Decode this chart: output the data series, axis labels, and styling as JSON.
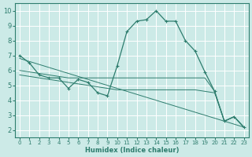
{
  "xlabel": "Humidex (Indice chaleur)",
  "xlim": [
    -0.5,
    23.5
  ],
  "ylim": [
    1.5,
    10.5
  ],
  "xticks": [
    0,
    1,
    2,
    3,
    4,
    5,
    6,
    7,
    8,
    9,
    10,
    11,
    12,
    13,
    14,
    15,
    16,
    17,
    18,
    19,
    20,
    21,
    22,
    23
  ],
  "yticks": [
    2,
    3,
    4,
    5,
    6,
    7,
    8,
    9,
    10
  ],
  "bg_color": "#cceae7",
  "grid_color": "#ffffff",
  "line_color": "#2e7d6e",
  "lines": [
    {
      "x": [
        0,
        1,
        2,
        3,
        4,
        5,
        6,
        7,
        8,
        9,
        10,
        11,
        12,
        13,
        14,
        15,
        16,
        17,
        18,
        19,
        20,
        21,
        22,
        23
      ],
      "y": [
        7.0,
        6.5,
        5.7,
        5.5,
        5.5,
        4.8,
        5.4,
        5.2,
        4.5,
        4.3,
        6.3,
        8.6,
        9.3,
        9.4,
        10.0,
        9.3,
        9.3,
        8.0,
        7.3,
        5.9,
        4.6,
        2.6,
        2.9,
        2.2
      ],
      "marker": true
    },
    {
      "x": [
        0,
        1,
        2,
        3,
        4,
        5,
        6,
        7,
        8,
        9,
        10,
        11,
        12,
        13,
        14,
        15,
        16,
        17,
        18,
        19,
        20,
        21,
        22,
        23
      ],
      "y": [
        6.0,
        5.9,
        5.8,
        5.7,
        5.6,
        5.5,
        5.5,
        5.5,
        5.5,
        5.5,
        5.5,
        5.5,
        5.5,
        5.5,
        5.5,
        5.5,
        5.5,
        5.5,
        5.5,
        5.5,
        4.6,
        2.6,
        2.9,
        2.2
      ],
      "marker": false
    },
    {
      "x": [
        0,
        1,
        2,
        3,
        4,
        5,
        6,
        7,
        8,
        9,
        10,
        11,
        12,
        13,
        14,
        15,
        16,
        17,
        18,
        19,
        20,
        21,
        22,
        23
      ],
      "y": [
        5.7,
        5.6,
        5.5,
        5.4,
        5.3,
        5.2,
        5.1,
        5.0,
        4.9,
        4.8,
        4.7,
        4.7,
        4.7,
        4.7,
        4.7,
        4.7,
        4.7,
        4.7,
        4.7,
        4.6,
        4.5,
        2.6,
        2.9,
        2.2
      ],
      "marker": false
    },
    {
      "x": [
        0,
        23
      ],
      "y": [
        6.8,
        2.2
      ],
      "marker": false
    }
  ]
}
